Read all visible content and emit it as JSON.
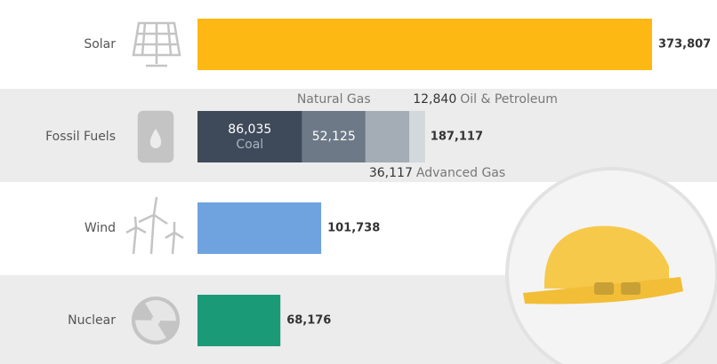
{
  "chart_data": {
    "type": "bar",
    "orientation": "horizontal",
    "bars": [
      {
        "label": "Solar",
        "value": 373807,
        "value_label": "373,807",
        "color": "#fdb813"
      },
      {
        "label": "Fossil Fuels",
        "total": 187117,
        "total_label": "187,117",
        "segments": [
          {
            "name": "Coal",
            "value": 86035,
            "value_label": "86,035",
            "color": "#3e4a59"
          },
          {
            "name": "Natural Gas",
            "value": 52125,
            "value_label": "52,125",
            "color": "#6d7987"
          },
          {
            "name": "Advanced Gas",
            "value": 36117,
            "value_label": "36,117",
            "color": "#a4adb5"
          },
          {
            "name": "Oil & Petroleum",
            "value": 12840,
            "value_label": "12,840",
            "color": "#d3d8dc"
          }
        ]
      },
      {
        "label": "Wind",
        "value": 101738,
        "value_label": "101,738",
        "color": "#6fa3e0"
      },
      {
        "label": "Nuclear",
        "value": 68176,
        "value_label": "68,176",
        "color": "#1b9a78"
      }
    ]
  }
}
